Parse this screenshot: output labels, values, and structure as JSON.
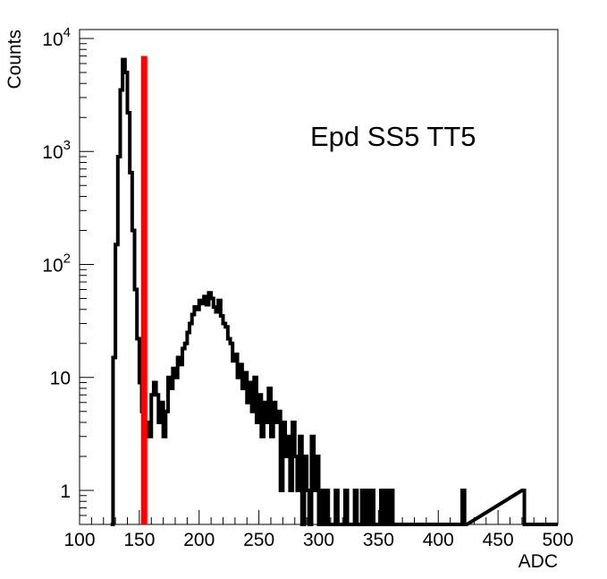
{
  "chart_data": {
    "type": "histogram",
    "xlabel": "ADC",
    "ylabel": "Counts",
    "annotation": "Epd SS5 TT5",
    "xlim": [
      100,
      500
    ],
    "ylim": [
      0.5,
      12000
    ],
    "y_scale": "log",
    "x_ticks": [
      100,
      150,
      200,
      250,
      300,
      350,
      400,
      450,
      500
    ],
    "x_tick_labels": [
      "100",
      "150",
      "200",
      "250",
      "300",
      "350",
      "400",
      "450",
      "500"
    ],
    "y_ticks": [
      {
        "value": 1,
        "label": "1",
        "exp": ""
      },
      {
        "value": 10,
        "label": "10",
        "exp": ""
      },
      {
        "value": 100,
        "label": "10",
        "exp": "2"
      },
      {
        "value": 1000,
        "label": "10",
        "exp": "3"
      },
      {
        "value": 10000,
        "label": "10",
        "exp": "4"
      }
    ],
    "threshold": {
      "x": 154,
      "y_top": 7000,
      "color": "#ff0000"
    },
    "series": [
      {
        "color": "#000000",
        "bin_width": 2,
        "bins": [
          [
            126,
            0.5
          ],
          [
            128,
            15
          ],
          [
            130,
            150
          ],
          [
            132,
            900
          ],
          [
            134,
            3500
          ],
          [
            136,
            6500
          ],
          [
            138,
            5000
          ],
          [
            140,
            2200
          ],
          [
            142,
            650
          ],
          [
            144,
            200
          ],
          [
            146,
            60
          ],
          [
            148,
            22
          ],
          [
            150,
            9
          ],
          [
            152,
            5
          ],
          [
            154,
            3
          ],
          [
            156,
            4
          ],
          [
            158,
            3
          ],
          [
            160,
            7
          ],
          [
            162,
            9
          ],
          [
            164,
            7
          ],
          [
            166,
            4
          ],
          [
            168,
            6
          ],
          [
            170,
            3
          ],
          [
            172,
            5
          ],
          [
            174,
            10
          ],
          [
            176,
            8
          ],
          [
            178,
            12
          ],
          [
            180,
            10
          ],
          [
            182,
            15
          ],
          [
            184,
            13
          ],
          [
            186,
            18
          ],
          [
            188,
            20
          ],
          [
            190,
            25
          ],
          [
            192,
            30
          ],
          [
            194,
            36
          ],
          [
            196,
            42
          ],
          [
            198,
            40
          ],
          [
            200,
            48
          ],
          [
            202,
            45
          ],
          [
            204,
            52
          ],
          [
            206,
            44
          ],
          [
            208,
            56
          ],
          [
            210,
            50
          ],
          [
            212,
            42
          ],
          [
            214,
            38
          ],
          [
            216,
            48
          ],
          [
            218,
            35
          ],
          [
            220,
            30
          ],
          [
            222,
            28
          ],
          [
            224,
            22
          ],
          [
            226,
            20
          ],
          [
            228,
            14
          ],
          [
            230,
            16
          ],
          [
            232,
            10
          ],
          [
            234,
            13
          ],
          [
            236,
            8
          ],
          [
            238,
            11
          ],
          [
            240,
            6
          ],
          [
            242,
            9
          ],
          [
            244,
            5
          ],
          [
            246,
            10
          ],
          [
            248,
            4
          ],
          [
            250,
            7
          ],
          [
            252,
            3
          ],
          [
            254,
            6
          ],
          [
            256,
            4
          ],
          [
            258,
            8
          ],
          [
            260,
            3
          ],
          [
            262,
            6
          ],
          [
            264,
            4
          ],
          [
            266,
            5
          ],
          [
            268,
            1
          ],
          [
            270,
            4
          ],
          [
            272,
            2
          ],
          [
            274,
            3
          ],
          [
            276,
            1
          ],
          [
            278,
            4
          ],
          [
            280,
            2
          ],
          [
            282,
            1
          ],
          [
            284,
            3
          ],
          [
            286,
            0.5
          ],
          [
            288,
            2
          ],
          [
            290,
            1
          ],
          [
            292,
            0.5
          ],
          [
            294,
            3
          ],
          [
            296,
            1
          ],
          [
            298,
            2
          ],
          [
            300,
            0.5
          ],
          [
            302,
            1
          ],
          [
            304,
            0.5
          ],
          [
            306,
            1
          ],
          [
            308,
            0.5
          ],
          [
            310,
            0.5
          ],
          [
            312,
            0.5
          ],
          [
            314,
            1
          ],
          [
            316,
            0.5
          ],
          [
            318,
            0.5
          ],
          [
            320,
            0.5
          ],
          [
            322,
            1
          ],
          [
            324,
            0.5
          ],
          [
            326,
            0.5
          ],
          [
            328,
            0.5
          ],
          [
            330,
            1
          ],
          [
            332,
            0.5
          ],
          [
            334,
            0.5
          ],
          [
            336,
            1
          ],
          [
            338,
            0.5
          ],
          [
            340,
            1
          ],
          [
            342,
            0.5
          ],
          [
            344,
            1
          ],
          [
            346,
            0.5
          ],
          [
            348,
            0.5
          ],
          [
            350,
            0.5
          ],
          [
            352,
            1
          ],
          [
            354,
            0.5
          ],
          [
            356,
            1
          ],
          [
            358,
            0.5
          ],
          [
            360,
            1
          ],
          [
            362,
            0.5
          ],
          [
            364,
            0.5
          ],
          [
            366,
            0.5
          ],
          [
            368,
            0.5
          ],
          [
            370,
            0.5
          ],
          [
            372,
            0.5
          ],
          [
            374,
            0.5
          ],
          [
            376,
            0.5
          ],
          [
            378,
            0.5
          ],
          [
            380,
            0.5
          ],
          [
            382,
            0.5
          ],
          [
            384,
            0.5
          ],
          [
            386,
            0.5
          ],
          [
            388,
            0.5
          ],
          [
            390,
            0.5
          ],
          [
            392,
            0.5
          ],
          [
            394,
            0.5
          ],
          [
            396,
            0.5
          ],
          [
            398,
            0.5
          ],
          [
            400,
            0.5
          ],
          [
            402,
            0.5
          ],
          [
            404,
            0.5
          ],
          [
            406,
            0.5
          ],
          [
            408,
            0.5
          ],
          [
            410,
            0.5
          ],
          [
            412,
            0.5
          ],
          [
            414,
            0.5
          ],
          [
            416,
            0.5
          ],
          [
            418,
            0.5
          ],
          [
            420,
            1
          ],
          [
            422,
            0.5
          ],
          [
            470,
            1
          ],
          [
            472,
            0.5
          ]
        ]
      }
    ]
  }
}
